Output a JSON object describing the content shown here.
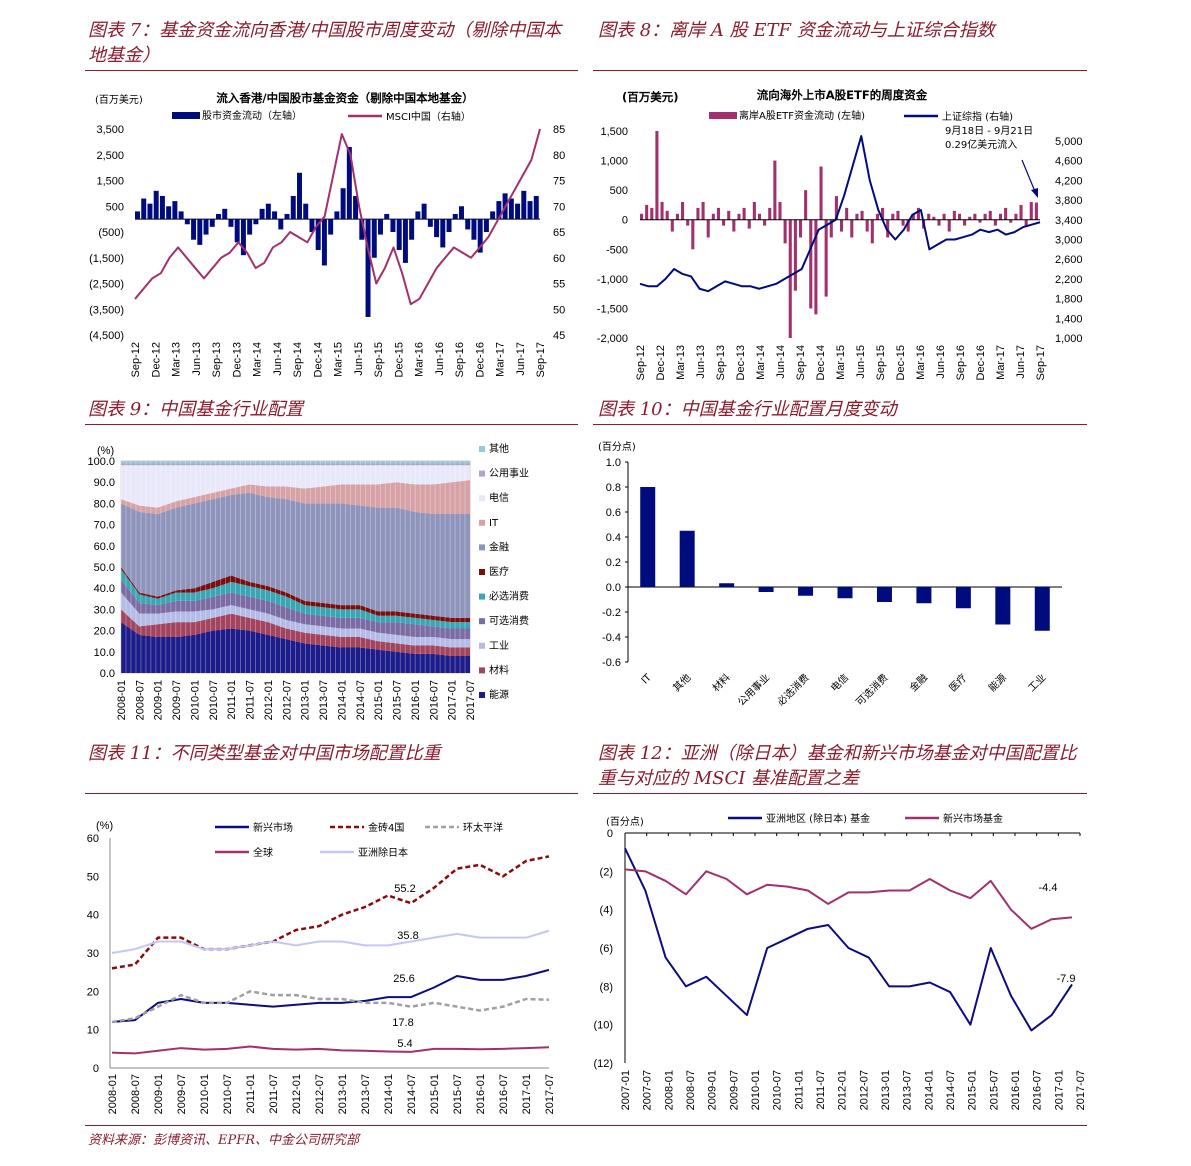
{
  "headings": {
    "fig7": "图表 7：基金资金流向香港/中国股市周度变动（剔除中国本地基金）",
    "fig8": "图表 8：离岸 A 股 ETF 资金流动与上证综合指数",
    "fig9": "图表 9：中国基金行业配置",
    "fig10": "图表 10：中国基金行业配置月度变动",
    "fig11": "图表 11：不同类型基金对中国市场配置比重",
    "fig12": "图表 12：亚洲（除日本）基金和新兴市场基金对中国配置比重与对应的 MSCI 基准配置之差"
  },
  "source": "资料来源：彭博资讯、EPFR、中金公司研究部",
  "chart_data": [
    {
      "id": "fig7",
      "type": "bar+line",
      "title": "流入香港/中国股市基金资金（剔除中国本地基金）",
      "ylabel_left": "(百万美元)",
      "legend": [
        "股市资金流动（左轴）",
        "MSCI中国（右轴）"
      ],
      "ylim_left": [
        -4500,
        3500
      ],
      "ylim_right": [
        45,
        85
      ],
      "yticks_left": [
        "3,500",
        "2,500",
        "1,500",
        "500",
        "(500)",
        "(1,500)",
        "(2,500)",
        "(3,500)",
        "(4,500)"
      ],
      "yticks_left_values": [
        3500,
        2500,
        1500,
        500,
        -500,
        -1500,
        -2500,
        -3500,
        -4500
      ],
      "yticks_right": [
        "85",
        "80",
        "75",
        "70",
        "65",
        "60",
        "55",
        "50",
        "45"
      ],
      "xticks": [
        "Sep-12",
        "Dec-12",
        "Mar-13",
        "Jun-13",
        "Sep-13",
        "Dec-13",
        "Mar-14",
        "Jun-14",
        "Sep-14",
        "Dec-14",
        "Mar-15",
        "Jun-15",
        "Sep-15",
        "Dec-15",
        "Mar-16",
        "Jun-16",
        "Sep-16",
        "Dec-16",
        "Mar-17",
        "Jun-17",
        "Sep-17"
      ],
      "flows": [
        300,
        800,
        600,
        1100,
        900,
        500,
        700,
        300,
        -200,
        -800,
        -1000,
        -600,
        -300,
        200,
        400,
        -300,
        -900,
        -1400,
        -600,
        -200,
        400,
        600,
        300,
        -400,
        200,
        900,
        1800,
        600,
        -500,
        -1200,
        -1800,
        -600,
        300,
        1200,
        2800,
        900,
        -800,
        -3800,
        -1500,
        -600,
        200,
        -500,
        -1200,
        -1700,
        -800,
        300,
        600,
        -300,
        -700,
        -1100,
        -500,
        200,
        500,
        -400,
        -800,
        -1300,
        -500,
        300,
        700,
        1000,
        800,
        600,
        1100,
        700,
        900
      ],
      "msci": [
        52,
        54,
        56,
        57,
        60,
        62,
        60,
        58,
        56,
        58,
        60,
        61,
        63,
        61,
        58,
        59,
        62,
        63,
        65,
        64,
        63,
        66,
        68,
        76,
        84,
        80,
        70,
        62,
        55,
        58,
        62,
        57,
        51,
        52,
        55,
        58,
        60,
        62,
        61,
        60,
        62,
        64,
        67,
        70,
        73,
        76,
        79,
        85
      ]
    },
    {
      "id": "fig8",
      "type": "bar+line",
      "title": "流向海外上市A股ETF的周度资金",
      "ylabel_left": "(百万美元)",
      "legend": [
        "离岸A股ETF资金流动 (左轴)",
        "上证综指 (右轴)"
      ],
      "annotation": [
        "9月18日 - 9月21日",
        "0.29亿美元流入"
      ],
      "ylim_left": [
        -2000,
        1500
      ],
      "ylim_right": [
        1000,
        5000
      ],
      "yticks_left": [
        "1,500",
        "1,000",
        "500",
        "0",
        "-500",
        "-1,000",
        "-1,500",
        "-2,000"
      ],
      "yticks_left_values": [
        1500,
        1000,
        500,
        0,
        -500,
        -1000,
        -1500,
        -2000
      ],
      "yticks_right": [
        "5,000",
        "4,600",
        "4,200",
        "3,800",
        "3,400",
        "3,000",
        "2,600",
        "2,200",
        "1,800",
        "1,400",
        "1,000"
      ],
      "yticks_right_values": [
        5000,
        4600,
        4200,
        3800,
        3400,
        3000,
        2600,
        2200,
        1800,
        1400,
        1000
      ],
      "xticks": [
        "Sep-12",
        "Dec-12",
        "Mar-13",
        "Jun-13",
        "Sep-13",
        "Dec-13",
        "Mar-14",
        "Jun-14",
        "Sep-14",
        "Dec-14",
        "Mar-15",
        "Jun-15",
        "Sep-15",
        "Dec-15",
        "Mar-16",
        "Jun-16",
        "Sep-16",
        "Dec-16",
        "Mar-17",
        "Jun-17",
        "Sep-17"
      ],
      "flows": [
        100,
        250,
        200,
        1500,
        300,
        150,
        -200,
        100,
        300,
        -100,
        -500,
        200,
        300,
        -300,
        100,
        200,
        -100,
        150,
        -200,
        100,
        200,
        -150,
        300,
        100,
        -100,
        200,
        1000,
        300,
        -400,
        -2000,
        -1200,
        -300,
        500,
        -1500,
        -1600,
        900,
        -1300,
        -300,
        400,
        -200,
        200,
        -300,
        100,
        150,
        -200,
        -400,
        100,
        200,
        -300,
        100,
        150,
        -100,
        -200,
        100,
        200,
        -150,
        100,
        50,
        -100,
        100,
        -200,
        150,
        100,
        -100,
        50,
        100,
        -50,
        100,
        150,
        -100,
        100,
        200,
        -50,
        100,
        250,
        -100,
        300,
        290
      ],
      "index": [
        2100,
        2050,
        2050,
        2200,
        2400,
        2300,
        2250,
        2000,
        1950,
        2050,
        2150,
        2100,
        2050,
        2050,
        2000,
        2050,
        2100,
        2200,
        2300,
        2400,
        2800,
        3200,
        3300,
        3400,
        3900,
        4500,
        5100,
        4200,
        3600,
        3200,
        3000,
        3200,
        3500,
        3600,
        2800,
        2900,
        3000,
        3000,
        3050,
        3100,
        3200,
        3150,
        3200,
        3100,
        3150,
        3250,
        3300,
        3350
      ]
    },
    {
      "id": "fig9",
      "type": "area",
      "ylabel": "(%)",
      "ylim": [
        0,
        100
      ],
      "yticks": [
        "100.0",
        "90.0",
        "80.0",
        "70.0",
        "60.0",
        "50.0",
        "40.0",
        "30.0",
        "20.0",
        "10.0",
        "0.0"
      ],
      "xticks": [
        "2008-01",
        "2008-07",
        "2009-01",
        "2009-07",
        "2010-01",
        "2010-07",
        "2011-01",
        "2011-07",
        "2012-01",
        "2012-07",
        "2013-01",
        "2013-07",
        "2014-01",
        "2014-07",
        "2015-01",
        "2015-07",
        "2016-01",
        "2016-07",
        "2017-01",
        "2017-07"
      ],
      "series": [
        {
          "name": "能源",
          "color": "#1c1c8a",
          "values": [
            24,
            18,
            17,
            17,
            18,
            20,
            21,
            20,
            18,
            16,
            14,
            13,
            12,
            12,
            11,
            10,
            9,
            9,
            8,
            8
          ]
        },
        {
          "name": "材料",
          "color": "#a3445e",
          "values": [
            6,
            4,
            6,
            7,
            6,
            6,
            7,
            6,
            6,
            5,
            5,
            5,
            5,
            5,
            4,
            4,
            4,
            4,
            4,
            4
          ]
        },
        {
          "name": "工业",
          "color": "#b4bce6",
          "values": [
            8,
            6,
            5,
            5,
            5,
            4,
            4,
            4,
            4,
            4,
            4,
            4,
            4,
            4,
            4,
            4,
            4,
            4,
            4,
            4
          ]
        },
        {
          "name": "可选消费",
          "color": "#7c6ca4",
          "values": [
            6,
            5,
            4,
            5,
            5,
            6,
            6,
            6,
            6,
            6,
            5,
            5,
            5,
            5,
            5,
            6,
            6,
            5,
            5,
            5
          ]
        },
        {
          "name": "必选消费",
          "color": "#3aa6b4",
          "values": [
            5,
            4,
            3,
            4,
            4,
            4,
            5,
            5,
            5,
            5,
            4,
            4,
            4,
            4,
            3,
            3,
            3,
            3,
            3,
            3
          ]
        },
        {
          "name": "医疗",
          "color": "#7a0e0e",
          "values": [
            1,
            1,
            1,
            1,
            2,
            3,
            3,
            2,
            2,
            2,
            2,
            2,
            2,
            2,
            2,
            2,
            2,
            2,
            2,
            2
          ]
        },
        {
          "name": "金融",
          "color": "#8e94bc",
          "values": [
            30,
            38,
            39,
            39,
            40,
            39,
            38,
            42,
            42,
            44,
            46,
            47,
            48,
            47,
            49,
            49,
            48,
            48,
            49,
            49
          ]
        },
        {
          "name": "IT",
          "color": "#d6a2a6",
          "values": [
            2,
            3,
            3,
            3,
            3,
            3,
            3,
            4,
            5,
            6,
            7,
            8,
            9,
            10,
            11,
            12,
            13,
            14,
            15,
            16
          ]
        },
        {
          "name": "电信",
          "color": "#e8e8fa",
          "values": [
            16,
            19,
            20,
            17,
            15,
            13,
            11,
            9,
            10,
            10,
            11,
            10,
            9,
            9,
            9,
            8,
            9,
            9,
            8,
            7
          ]
        },
        {
          "name": "公用事业",
          "color": "#b2a2c6",
          "values": [
            1,
            1,
            1,
            1,
            1,
            1,
            1,
            1,
            1,
            1,
            1,
            1,
            1,
            1,
            1,
            1,
            1,
            1,
            1,
            1
          ]
        },
        {
          "name": "其他",
          "color": "#92ccd4",
          "values": [
            1,
            1,
            1,
            1,
            1,
            1,
            1,
            1,
            1,
            1,
            1,
            1,
            1,
            1,
            1,
            1,
            1,
            1,
            1,
            1
          ]
        }
      ]
    },
    {
      "id": "fig10",
      "type": "bar",
      "ylabel": "(百分点)",
      "ylim": [
        -0.6,
        1.0
      ],
      "yticks": [
        "1.0",
        "0.8",
        "0.6",
        "0.4",
        "0.2",
        "0.0",
        "-0.2",
        "-0.4",
        "-0.6"
      ],
      "yticks_values": [
        1.0,
        0.8,
        0.6,
        0.4,
        0.2,
        0.0,
        -0.2,
        -0.4,
        -0.6
      ],
      "categories": [
        "IT",
        "其他",
        "材料",
        "公用事业",
        "必选消费",
        "电信",
        "可选消费",
        "金融",
        "医疗",
        "能源",
        "工业"
      ],
      "values": [
        0.8,
        0.45,
        0.03,
        -0.04,
        -0.07,
        -0.09,
        -0.12,
        -0.13,
        -0.17,
        -0.3,
        -0.35
      ],
      "color": "#000c7e"
    },
    {
      "id": "fig11",
      "type": "line",
      "ylabel": "(%)",
      "ylim": [
        0,
        60
      ],
      "yticks": [
        "60",
        "50",
        "40",
        "30",
        "20",
        "10",
        "0"
      ],
      "xticks": [
        "2008-01",
        "2008-07",
        "2009-01",
        "2009-07",
        "2010-01",
        "2010-07",
        "2011-01",
        "2011-07",
        "2012-01",
        "2012-07",
        "2013-01",
        "2013-07",
        "2014-01",
        "2014-07",
        "2015-01",
        "2015-07",
        "2016-01",
        "2016-07",
        "2017-01",
        "2017-07"
      ],
      "series": [
        {
          "name": "新兴市场",
          "color": "#0c0c84",
          "dash": "",
          "values": [
            12,
            12.5,
            17,
            18,
            17,
            17,
            16.5,
            16,
            16.5,
            17,
            17,
            17.5,
            18.5,
            18.5,
            21,
            24,
            23,
            23,
            24,
            25.6
          ],
          "label": "25.6"
        },
        {
          "name": "金砖4国",
          "color": "#8b0a0a",
          "dash": "5,3",
          "values": [
            26,
            27,
            34,
            34,
            31,
            31,
            32,
            33,
            36,
            37,
            40,
            42,
            45,
            43,
            47,
            52,
            53,
            50,
            54,
            55.2
          ],
          "label": "55.2"
        },
        {
          "name": "环太平洋",
          "color": "#a0a0a0",
          "dash": "5,3",
          "values": [
            12,
            13,
            16,
            19,
            17,
            17,
            20,
            19,
            19,
            18,
            18,
            17,
            17,
            16,
            17,
            16,
            15,
            16,
            18,
            17.8
          ],
          "label": "17.8"
        },
        {
          "name": "全球",
          "color": "#a2306c",
          "dash": "",
          "values": [
            4,
            3.8,
            4.5,
            5.2,
            4.8,
            5,
            5.6,
            5,
            4.8,
            5,
            4.6,
            4.5,
            4.3,
            4.2,
            5,
            5,
            4.9,
            5,
            5.2,
            5.4
          ],
          "label": "5.4"
        },
        {
          "name": "亚洲除日本",
          "color": "#c4c6f6",
          "dash": "",
          "values": [
            30,
            31,
            33,
            33,
            31,
            31,
            32,
            33,
            32,
            33,
            33,
            32,
            32,
            33,
            34,
            35,
            34,
            34,
            34,
            35.8
          ],
          "label": "35.8"
        }
      ]
    },
    {
      "id": "fig12",
      "type": "line",
      "ylabel": "(百分点)",
      "ylim": [
        -12,
        0
      ],
      "yticks": [
        "0",
        "(2)",
        "(4)",
        "(6)",
        "(8)",
        "(10)",
        "(12)"
      ],
      "xticks": [
        "2007-01",
        "2007-07",
        "2008-01",
        "2008-07",
        "2009-01",
        "2009-07",
        "2010-01",
        "2010-07",
        "2011-01",
        "2011-07",
        "2012-01",
        "2012-07",
        "2013-01",
        "2013-07",
        "2014-01",
        "2014-07",
        "2015-01",
        "2015-07",
        "2016-01",
        "2016-07",
        "2017-01",
        "2017-07"
      ],
      "series": [
        {
          "name": "亚洲地区 (除日本) 基金",
          "color": "#0c0c84",
          "values": [
            -0.8,
            -3,
            -6.5,
            -8,
            -7.5,
            -8.5,
            -9.5,
            -6,
            -5.5,
            -5,
            -4.8,
            -6,
            -6.5,
            -8,
            -8,
            -7.8,
            -8.3,
            -10,
            -6,
            -8.5,
            -10.3,
            -9.5,
            -7.9
          ],
          "label": "-7.9"
        },
        {
          "name": "新兴市场基金",
          "color": "#a2306c",
          "values": [
            -1.9,
            -2,
            -2.5,
            -3.2,
            -2,
            -2.4,
            -3.2,
            -2.7,
            -2.8,
            -3,
            -3.7,
            -3.1,
            -3.1,
            -3,
            -3,
            -2.4,
            -3,
            -3.4,
            -2.5,
            -4,
            -5,
            -4.5,
            -4.4
          ],
          "label": "-4.4"
        }
      ]
    }
  ]
}
